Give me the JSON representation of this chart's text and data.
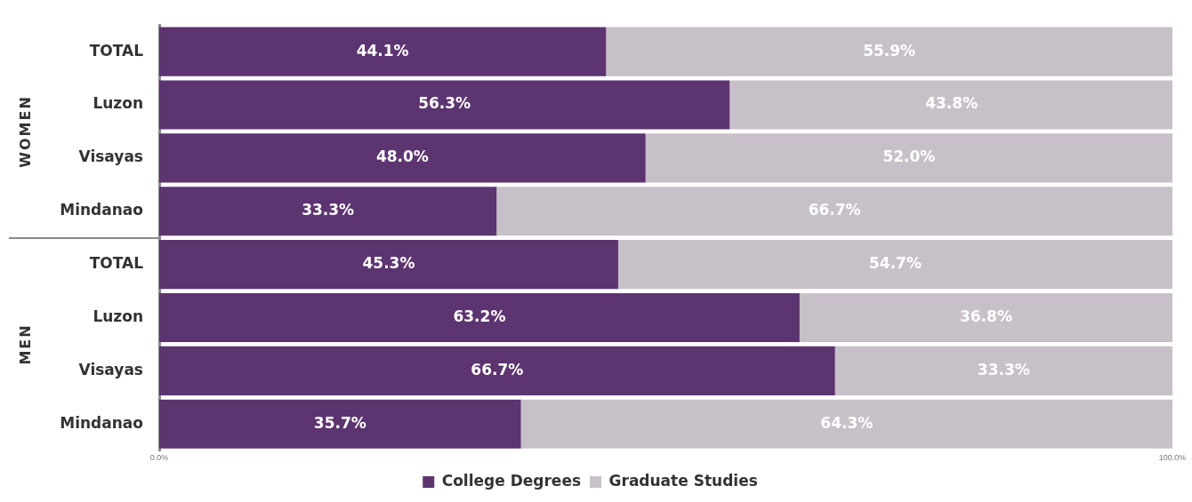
{
  "chart_data": {
    "type": "bar",
    "orientation": "horizontal",
    "stacked": true,
    "categories": [
      "TOTAL",
      "Luzon",
      "Visayas",
      "Mindanao",
      "TOTAL",
      "Luzon",
      "Visayas",
      "Mindanao"
    ],
    "series": [
      {
        "name": "College Degrees",
        "color": "#5c3470",
        "values": [
          44.1,
          56.3,
          48.0,
          33.3,
          45.3,
          63.2,
          66.7,
          35.7
        ],
        "value_labels": [
          "44.1%",
          "56.3%",
          "48.0%",
          "33.3%",
          "45.3%",
          "63.2%",
          "66.7%",
          "35.7%"
        ]
      },
      {
        "name": "Graduate Studies",
        "color": "#c8c0c8",
        "values": [
          55.9,
          43.8,
          52.0,
          66.7,
          54.7,
          36.8,
          33.3,
          64.3
        ],
        "value_labels": [
          "55.9%",
          "43.8%",
          "52.0%",
          "66.7%",
          "54.7%",
          "36.8%",
          "33.3%",
          "64.3%"
        ]
      }
    ],
    "xlim": [
      0,
      100
    ],
    "xticks": [
      {
        "value": 0,
        "label": "0.0%"
      },
      {
        "value": 100,
        "label": "100.0%"
      }
    ],
    "annotations": [
      "WOMEN",
      "MEN"
    ],
    "grid": false,
    "legend": "bottom"
  }
}
